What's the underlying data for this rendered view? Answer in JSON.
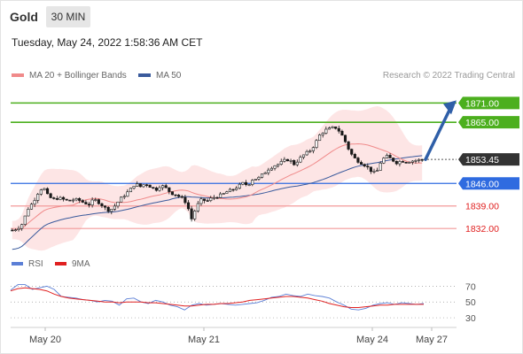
{
  "header": {
    "title": "Gold",
    "timeframe": "30 MIN",
    "datetime": "Tuesday, May 24, 2022 1:58:36 AM CET"
  },
  "legend": {
    "bollinger": "MA 20 + Bollinger Bands",
    "ma50": "MA 50",
    "credit": "Research © 2022 Trading Central"
  },
  "colors": {
    "ma20": "#f08a8a",
    "ma50": "#3a5a9c",
    "bands_fill": "#fde0e0",
    "resistance": "#4caf1e",
    "pivot": "#2f6be0",
    "support": "#f29a9a",
    "support_text": "#e02020",
    "arrow": "#2f5fa8",
    "rsi": "#5b7fd6",
    "rsi_ma": "#e02020",
    "price_tag": "#333333"
  },
  "rsi_legend": {
    "rsi": "RSI",
    "ma": "9MA"
  },
  "chart_data": [
    {
      "type": "candlestick",
      "title": "Gold",
      "timeframe": "30 MIN",
      "x_tick_labels": [
        "May 20",
        "May 21",
        "May 24",
        "May 27"
      ],
      "ylim": [
        1826.0,
        1875.5
      ],
      "levels": [
        {
          "value": 1871.0,
          "label": "1871.00",
          "kind": "resistance"
        },
        {
          "value": 1865.0,
          "label": "1865.00",
          "kind": "resistance"
        },
        {
          "value": 1853.45,
          "label": "1853.45",
          "kind": "last"
        },
        {
          "value": 1846.0,
          "label": "1846.00",
          "kind": "pivot"
        },
        {
          "value": 1839.0,
          "label": "1839.00",
          "kind": "support"
        },
        {
          "value": 1832.0,
          "label": "1832.00",
          "kind": "support"
        }
      ],
      "price_path": [
        1831.5,
        1832.0,
        1833.5,
        1838.0,
        1840.0,
        1843.0,
        1845.0,
        1842.0,
        1841.0,
        1841.5,
        1841.0,
        1840.5,
        1841.0,
        1840.8,
        1840.0,
        1839.5,
        1841.0,
        1840.0,
        1838.5,
        1837.5,
        1839.0,
        1841.0,
        1842.5,
        1844.0,
        1846.0,
        1845.0,
        1846.0,
        1845.0,
        1844.0,
        1845.5,
        1844.5,
        1843.0,
        1842.5,
        1841.5,
        1840.0,
        1835.0,
        1839.0,
        1841.0,
        1840.5,
        1841.5,
        1842.0,
        1842.5,
        1843.5,
        1844.0,
        1845.0,
        1846.0,
        1845.5,
        1847.5,
        1847.5,
        1849.0,
        1850.5,
        1851.5,
        1852.0,
        1853.0,
        1853.5,
        1852.0,
        1853.5,
        1855.0,
        1856.0,
        1858.0,
        1861.0,
        1862.5,
        1863.0,
        1863.5,
        1862.0,
        1859.0,
        1855.5,
        1853.5,
        1852.5,
        1851.5,
        1850.0,
        1849.0,
        1853.0,
        1854.5,
        1853.5,
        1852.5,
        1853.0,
        1852.8,
        1853.0,
        1853.2,
        1853.45
      ],
      "projection": {
        "from": 1853.45,
        "to": 1871.0
      },
      "series": [
        {
          "name": "MA 20 + Bollinger Bands"
        },
        {
          "name": "MA 50"
        }
      ]
    },
    {
      "type": "line",
      "title": "RSI",
      "ylim": [
        20,
        85
      ],
      "y_ticks": [
        70,
        50,
        30
      ],
      "series": [
        {
          "name": "RSI",
          "values": [
            65,
            72,
            72,
            66,
            68,
            70,
            66,
            57,
            56,
            55,
            53,
            52,
            50,
            52,
            51,
            46,
            54,
            55,
            50,
            48,
            52,
            50,
            46,
            44,
            40,
            46,
            48,
            46,
            47,
            48,
            47,
            46,
            47,
            48,
            49,
            52,
            56,
            57,
            60,
            58,
            57,
            60,
            58,
            57,
            55,
            50,
            46,
            41,
            40,
            42,
            46,
            48,
            49,
            47,
            49,
            48,
            47,
            48
          ]
        },
        {
          "name": "9MA",
          "values": [
            64,
            67,
            68,
            67,
            66,
            64,
            60,
            57,
            55,
            54,
            53,
            52,
            51,
            50,
            50,
            49,
            50,
            50,
            50,
            49,
            49,
            48,
            47,
            46,
            45,
            45,
            46,
            47,
            47,
            48,
            48,
            49,
            50,
            52,
            53,
            54,
            55,
            56,
            57,
            57,
            56,
            55,
            53,
            51,
            48,
            46,
            44,
            43,
            43,
            44,
            45,
            46,
            46,
            47,
            47,
            47,
            47,
            47
          ]
        }
      ]
    }
  ]
}
